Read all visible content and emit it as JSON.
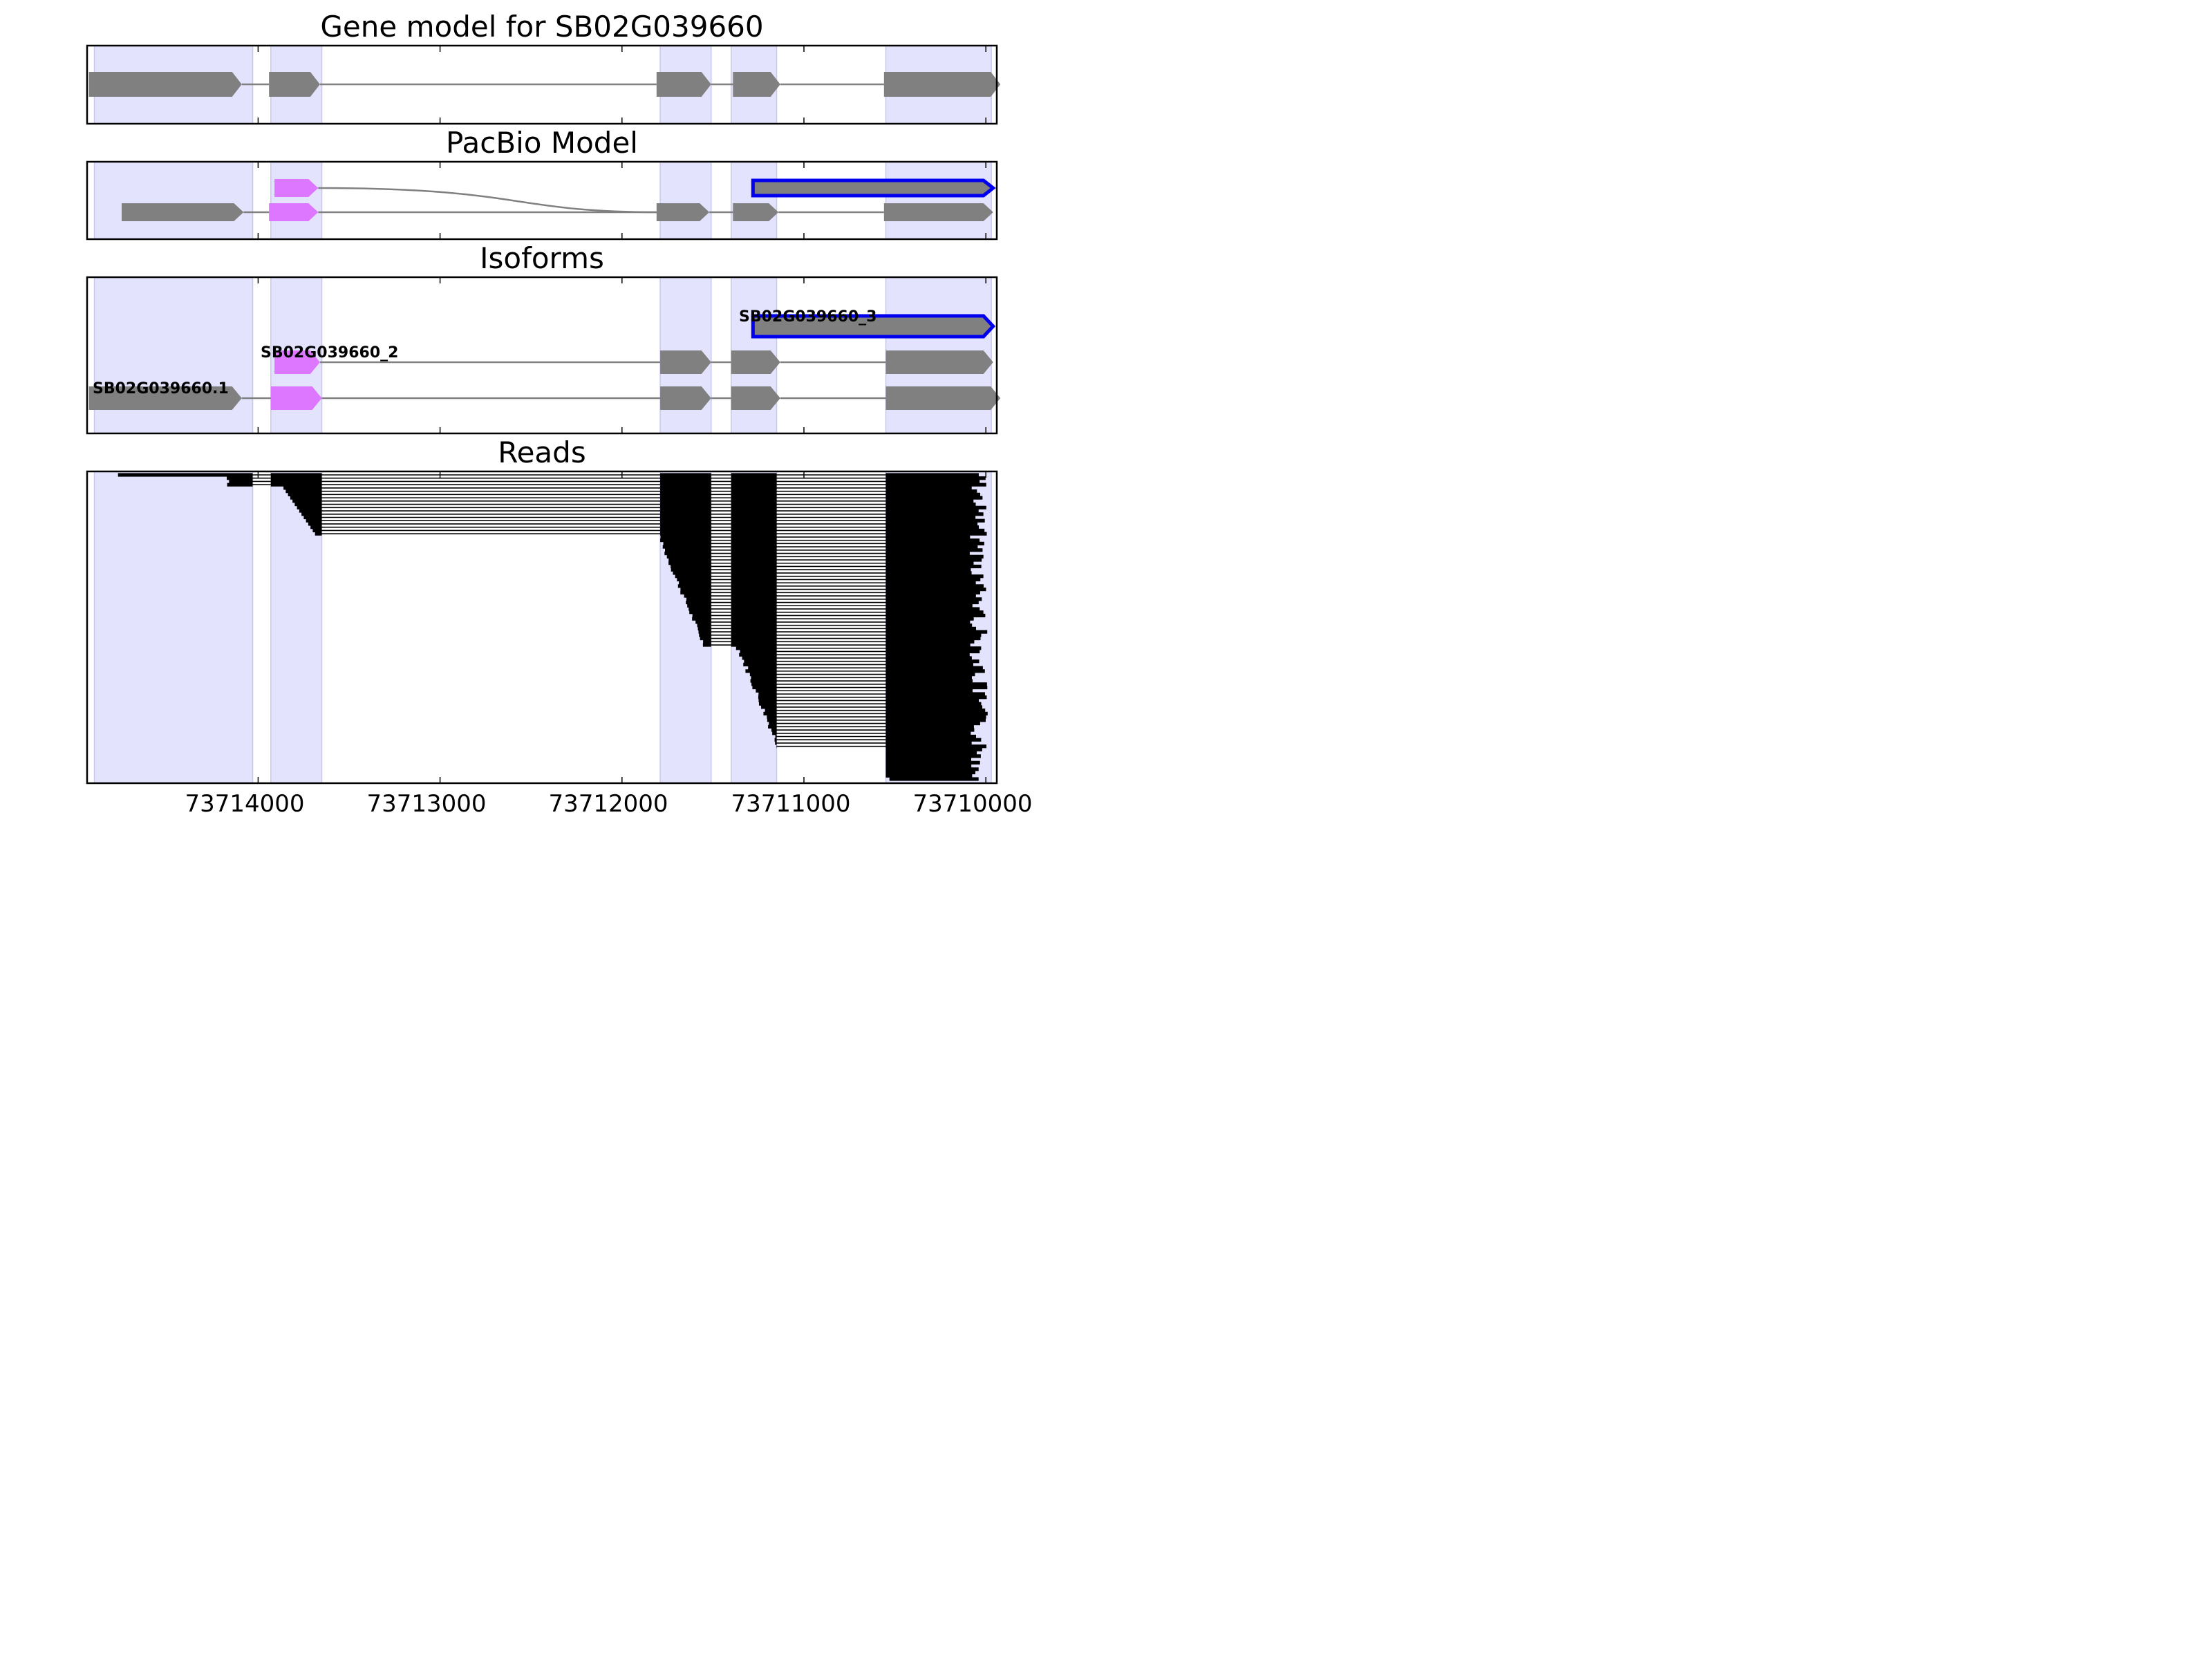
{
  "chart_data": {
    "type": "gene_model_tracks",
    "panels": [
      {
        "id": "gene",
        "title": "Gene model for SB02G039660"
      },
      {
        "id": "pacbio",
        "title": "PacBio Model"
      },
      {
        "id": "isoforms",
        "title": "Isoforms"
      },
      {
        "id": "reads",
        "title": "Reads"
      }
    ],
    "xaxis": {
      "reversed": true,
      "xlim": [
        73714940,
        73709940
      ],
      "ticks": [
        73714000,
        73713000,
        73712000,
        73711000,
        73710000
      ],
      "tick_labels": [
        "73714000",
        "73713000",
        "73712000",
        "73711000",
        "73710000"
      ]
    },
    "exon_regions": [
      [
        73714900,
        73714030
      ],
      [
        73713930,
        73713650
      ],
      [
        73711790,
        73711510
      ],
      [
        73711400,
        73711150
      ],
      [
        73710550,
        73709970
      ]
    ],
    "colors": {
      "exon": "#808080",
      "intron": "#808080",
      "region_fill": "#e3e3fd",
      "region_edge": "#c8c8ee",
      "alt_exon": "#dd77ff",
      "highlight_edge": "#0000ee",
      "read": "#000000"
    },
    "gene_model": {
      "exons": [
        [
          73714930,
          73714090
        ],
        [
          73713940,
          73713660
        ],
        [
          73711810,
          73711510
        ],
        [
          73711390,
          73711130
        ],
        [
          73710560,
          73709920
        ]
      ]
    },
    "pacbio_model": {
      "rows": [
        {
          "exons": [
            [
              73713910,
              73713670
            ],
            [
              73711280,
              73709960
            ]
          ],
          "intron_style": "curve_to_lower",
          "highlight": true
        },
        {
          "exons": [
            [
              73714750,
              73714080
            ],
            [
              73713940,
              73713670
            ],
            [
              73711810,
              73711520
            ],
            [
              73711390,
              73711140
            ],
            [
              73710560,
              73709960
            ]
          ],
          "alt_exon_index": 1
        }
      ]
    },
    "isoforms": [
      {
        "name": "SB02G039660_3",
        "exons": [
          [
            73711280,
            73709960
          ]
        ],
        "highlight": true
      },
      {
        "name": "SB02G039660_2",
        "exons": [
          [
            73713910,
            73713660
          ],
          [
            73711790,
            73711510
          ],
          [
            73711400,
            73711130
          ],
          [
            73710550,
            73709960
          ]
        ],
        "alt_exon_index": 0
      },
      {
        "name": "SB02G039660.1",
        "exons": [
          [
            73714930,
            73714090
          ],
          [
            73713930,
            73713650
          ],
          [
            73711790,
            73711510
          ],
          [
            73711400,
            73711130
          ],
          [
            73710550,
            73709920
          ]
        ],
        "alt_exon_index": 1
      }
    ],
    "reads": {
      "count": 94,
      "note": "Aligned read tracks stacked top to bottom; each read spans exon blocks joined by thin intron lines."
    }
  },
  "panel_titles": {
    "gene": "Gene model for SB02G039660",
    "pacbio": "PacBio Model",
    "isoforms": "Isoforms",
    "reads": "Reads"
  },
  "tick_labels": [
    "73714000",
    "73713000",
    "73712000",
    "73711000",
    "73710000"
  ]
}
